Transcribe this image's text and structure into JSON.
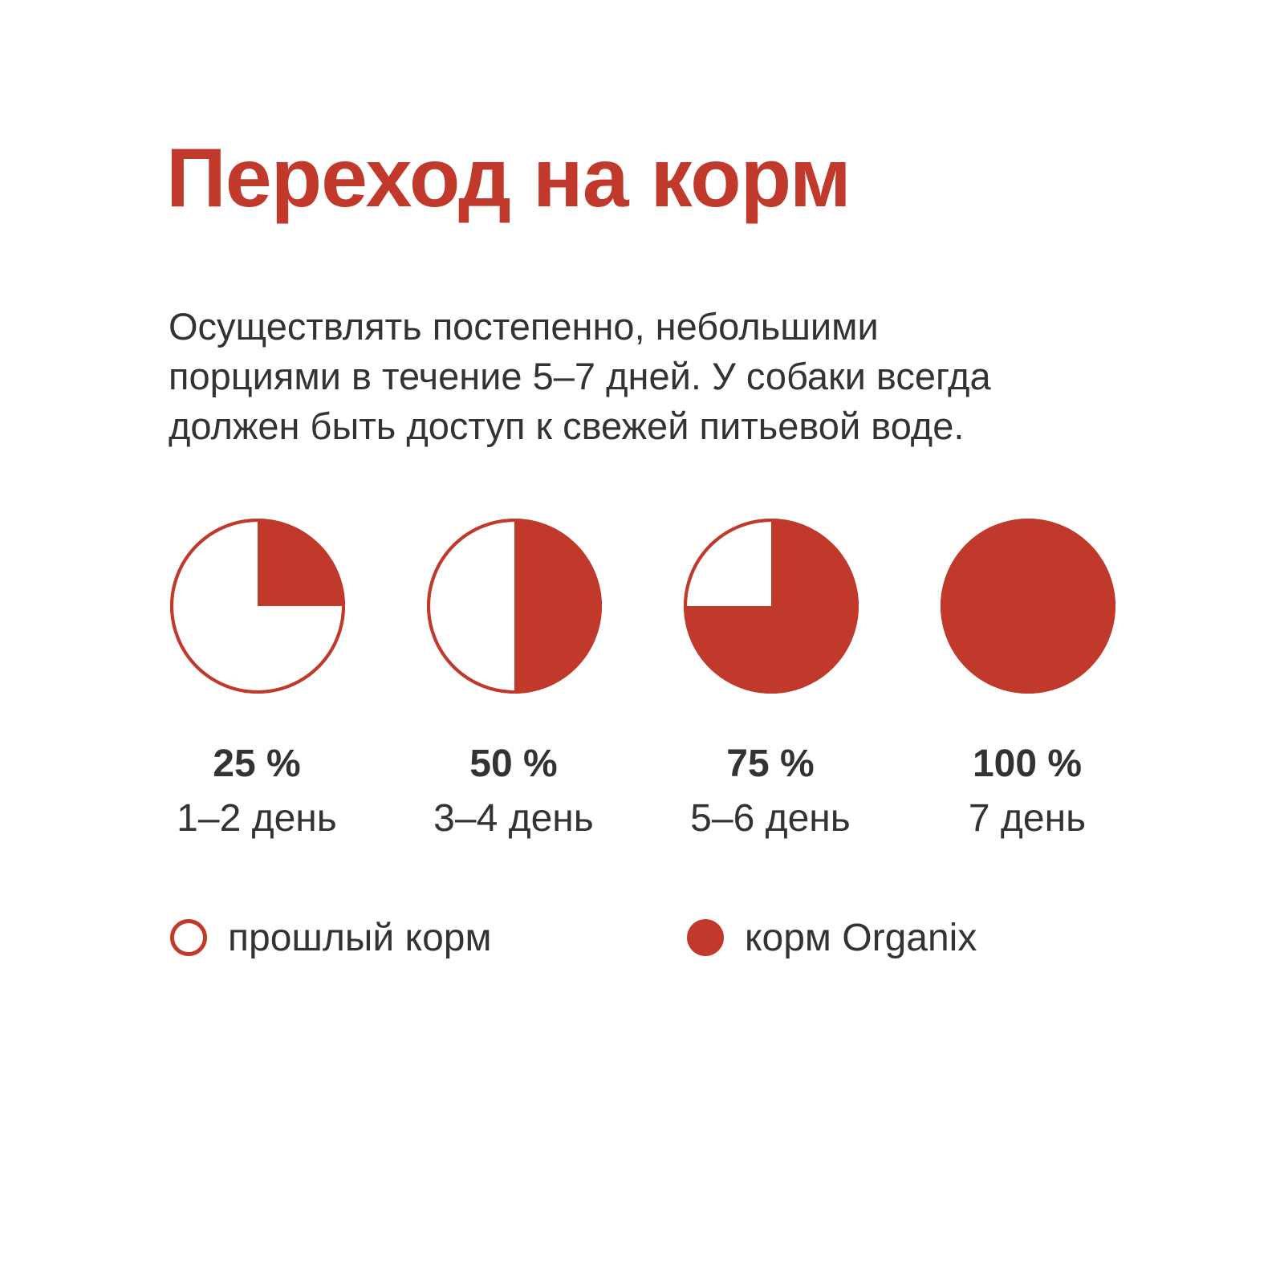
{
  "title": "Переход на корм",
  "intro": {
    "lines": [
      "Осуществлять постепенно, небольшими",
      "порциями в течение 5–7 дней. У собаки всегда",
      "должен быть доступ к свежей питьевой воде."
    ]
  },
  "colors": {
    "accent": "#c0392b",
    "text": "#333333",
    "background": "#ffffff"
  },
  "chart_data": {
    "type": "pie",
    "title": "Переход на корм",
    "series_names": [
      "прошлый корм",
      "корм Organix"
    ],
    "pies": [
      {
        "percent_label": "25 %",
        "day_label": "1–2 день",
        "organix_share": 0.25,
        "previous_share": 0.75
      },
      {
        "percent_label": "50 %",
        "day_label": "3–4 день",
        "organix_share": 0.5,
        "previous_share": 0.5
      },
      {
        "percent_label": "75 %",
        "day_label": "5–6 день",
        "organix_share": 0.75,
        "previous_share": 0.25
      },
      {
        "percent_label": "100 %",
        "day_label": "7 день",
        "organix_share": 1.0,
        "previous_share": 0.0
      }
    ],
    "legend": [
      {
        "label": "прошлый корм",
        "style": "outline"
      },
      {
        "label": "корм Organix",
        "style": "filled"
      }
    ],
    "legend_position": "bottom-left"
  }
}
